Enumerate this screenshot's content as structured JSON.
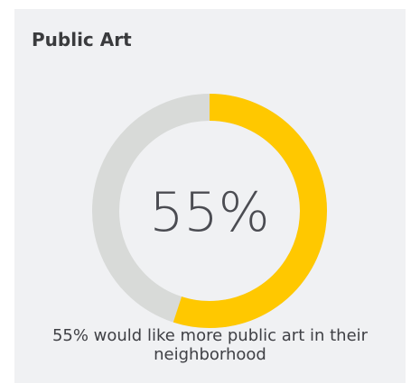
{
  "title": "Public Art",
  "caption": "55% would like more public art in their neighborhood",
  "colors": {
    "track": "#d8dad8",
    "fill": "#ffc800",
    "background": "#f0f1f3"
  },
  "chart_data": {
    "type": "pie",
    "title": "Public Art",
    "value_label": "55%",
    "slices": [
      {
        "value": 55
      },
      {
        "value": 45
      }
    ]
  }
}
